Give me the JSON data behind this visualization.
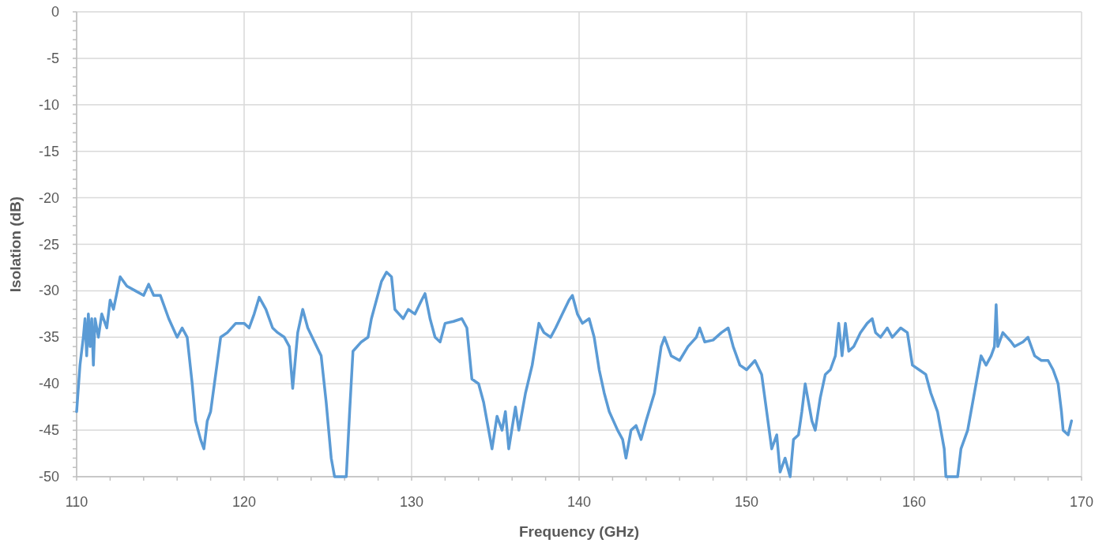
{
  "chart_data": {
    "type": "line",
    "xlabel": "Frequency (GHz)",
    "ylabel": "Isolation (dB)",
    "xlim": [
      110,
      170
    ],
    "ylim": [
      -50,
      0
    ],
    "xticks": [
      110,
      {
        "value": 112,
        "label": null
      },
      {
        "value": 114,
        "label": null
      },
      {
        "value": 116,
        "label": null
      },
      {
        "value": 118,
        "label": null
      },
      120,
      {
        "value": 122,
        "label": null
      },
      {
        "value": 124,
        "label": null
      },
      {
        "value": 126,
        "label": null
      },
      {
        "value": 128,
        "label": null
      },
      130,
      {
        "value": 132,
        "label": null
      },
      {
        "value": 134,
        "label": null
      },
      {
        "value": 136,
        "label": null
      },
      {
        "value": 138,
        "label": null
      },
      140,
      {
        "value": 142,
        "label": null
      },
      {
        "value": 144,
        "label": null
      },
      {
        "value": 146,
        "label": null
      },
      {
        "value": 148,
        "label": null
      },
      150,
      {
        "value": 152,
        "label": null
      },
      {
        "value": 154,
        "label": null
      },
      {
        "value": 156,
        "label": null
      },
      {
        "value": 158,
        "label": null
      },
      160,
      {
        "value": 162,
        "label": null
      },
      {
        "value": 164,
        "label": null
      },
      {
        "value": 166,
        "label": null
      },
      {
        "value": 168,
        "label": null
      },
      170
    ],
    "yticks": [
      -50,
      {
        "value": -49,
        "label": null
      },
      {
        "value": -48,
        "label": null
      },
      {
        "value": -47,
        "label": null
      },
      {
        "value": -46,
        "label": null
      },
      -45,
      {
        "value": -44,
        "label": null
      },
      {
        "value": -43,
        "label": null
      },
      {
        "value": -42,
        "label": null
      },
      {
        "value": -41,
        "label": null
      },
      -40,
      {
        "value": -39,
        "label": null
      },
      {
        "value": -38,
        "label": null
      },
      {
        "value": -37,
        "label": null
      },
      {
        "value": -36,
        "label": null
      },
      -35,
      {
        "value": -34,
        "label": null
      },
      {
        "value": -33,
        "label": null
      },
      {
        "value": -32,
        "label": null
      },
      {
        "value": -31,
        "label": null
      },
      -30,
      {
        "value": -29,
        "label": null
      },
      {
        "value": -28,
        "label": null
      },
      {
        "value": -27,
        "label": null
      },
      {
        "value": -26,
        "label": null
      },
      -25,
      {
        "value": -24,
        "label": null
      },
      {
        "value": -23,
        "label": null
      },
      {
        "value": -22,
        "label": null
      },
      {
        "value": -21,
        "label": null
      },
      -20,
      {
        "value": -19,
        "label": null
      },
      {
        "value": -18,
        "label": null
      },
      {
        "value": -17,
        "label": null
      },
      {
        "value": -16,
        "label": null
      },
      -15,
      {
        "value": -14,
        "label": null
      },
      {
        "value": -13,
        "label": null
      },
      {
        "value": -12,
        "label": null
      },
      {
        "value": -11,
        "label": null
      },
      -10,
      {
        "value": -9,
        "label": null
      },
      {
        "value": -8,
        "label": null
      },
      {
        "value": -7,
        "label": null
      },
      {
        "value": -6,
        "label": null
      },
      -5,
      {
        "value": -4,
        "label": null
      },
      {
        "value": -3,
        "label": null
      },
      {
        "value": -2,
        "label": null
      },
      {
        "value": -1,
        "label": null
      },
      0
    ],
    "grid": true,
    "marker": "none",
    "line_style": "solid",
    "series": [
      {
        "color": "#5b9bd5",
        "x": [
          110.0,
          110.2,
          110.4,
          110.5,
          110.6,
          110.7,
          110.8,
          110.9,
          111.0,
          111.1,
          111.3,
          111.5,
          111.8,
          112.0,
          112.2,
          112.6,
          113.0,
          113.5,
          114.0,
          114.3,
          114.6,
          115.0,
          115.5,
          116.0,
          116.3,
          116.6,
          116.9,
          117.1,
          117.4,
          117.6,
          117.8,
          118.0,
          118.3,
          118.6,
          119.0,
          119.5,
          120.0,
          120.3,
          120.6,
          120.9,
          121.3,
          121.7,
          122.0,
          122.4,
          122.7,
          122.9,
          123.2,
          123.5,
          123.8,
          124.2,
          124.6,
          124.9,
          125.2,
          125.4,
          126.1,
          126.3,
          126.5,
          127.0,
          127.4,
          127.6,
          127.9,
          128.2,
          128.5,
          128.8,
          129.0,
          129.5,
          129.8,
          130.2,
          130.6,
          130.8,
          131.1,
          131.4,
          131.7,
          132.0,
          132.5,
          133.0,
          133.3,
          133.6,
          134.0,
          134.3,
          134.5,
          134.8,
          135.1,
          135.4,
          135.6,
          135.8,
          136.2,
          136.4,
          136.8,
          137.2,
          137.6,
          137.9,
          138.3,
          138.6,
          139.0,
          139.4,
          139.6,
          139.9,
          140.2,
          140.6,
          140.9,
          141.2,
          141.5,
          141.8,
          142.3,
          142.6,
          142.8,
          143.1,
          143.4,
          143.7,
          144.0,
          144.5,
          144.9,
          145.1,
          145.5,
          146.0,
          146.5,
          147.0,
          147.2,
          147.5,
          148.0,
          148.5,
          148.9,
          149.2,
          149.6,
          150.0,
          150.5,
          150.9,
          151.2,
          151.5,
          151.8,
          152.0,
          152.3,
          152.6,
          152.8,
          153.1,
          153.3,
          153.5,
          153.9,
          154.1,
          154.4,
          154.7,
          155.0,
          155.3,
          155.5,
          155.7,
          155.9,
          156.1,
          156.4,
          156.8,
          157.2,
          157.5,
          157.7,
          158.0,
          158.4,
          158.7,
          159.2,
          159.6,
          159.9,
          160.3,
          160.7,
          161.0,
          161.4,
          161.8,
          161.9,
          162.6,
          162.8,
          163.2,
          163.5,
          163.8,
          164.0,
          164.3,
          164.6,
          164.8,
          164.9,
          165.0,
          165.3,
          165.8,
          166.0,
          166.5,
          166.8,
          167.2,
          167.6,
          168.0,
          168.3,
          168.6,
          168.8,
          168.9,
          169.2,
          169.4
        ],
        "values": [
          -43,
          -38,
          -35,
          -33,
          -37,
          -32.5,
          -36,
          -33,
          -38,
          -33,
          -35,
          -32.5,
          -34,
          -31,
          -32,
          -28.5,
          -29.5,
          -30,
          -30.5,
          -29.3,
          -30.5,
          -30.5,
          -33,
          -35,
          -34,
          -35,
          -40,
          -44,
          -46,
          -47,
          -44,
          -43,
          -39,
          -35,
          -34.5,
          -33.5,
          -33.5,
          -34,
          -32.5,
          -30.7,
          -32,
          -34,
          -34.5,
          -35,
          -36,
          -40.5,
          -34.5,
          -32,
          -34,
          -35.5,
          -37,
          -42,
          -48,
          -50,
          -50,
          -43,
          -36.5,
          -35.5,
          -35,
          -33,
          -31,
          -29,
          -28,
          -28.5,
          -32,
          -33,
          -32,
          -32.5,
          -31,
          -30.3,
          -33,
          -35,
          -35.5,
          -33.5,
          -33.3,
          -33,
          -34,
          -39.5,
          -40,
          -42,
          -44,
          -47,
          -43.5,
          -45,
          -43,
          -47,
          -42.5,
          -45,
          -41,
          -38,
          -33.5,
          -34.5,
          -35,
          -34,
          -32.5,
          -31,
          -30.5,
          -32.5,
          -33.5,
          -33,
          -35,
          -38.5,
          -41,
          -43,
          -45,
          -46,
          -48,
          -45,
          -44.5,
          -46,
          -44,
          -41,
          -36,
          -35,
          -37,
          -37.5,
          -36,
          -35,
          -34,
          -35.5,
          -35.3,
          -34.5,
          -34,
          -36,
          -38,
          -38.5,
          -37.5,
          -39,
          -43,
          -47,
          -45.5,
          -49.5,
          -48,
          -50,
          -46,
          -45.5,
          -43,
          -40,
          -44,
          -45,
          -41.5,
          -39,
          -38.5,
          -37,
          -33.5,
          -37,
          -33.5,
          -36.5,
          -36,
          -34.5,
          -33.5,
          -33,
          -34.5,
          -35,
          -34,
          -35,
          -34,
          -34.5,
          -38,
          -38.5,
          -39,
          -41,
          -43,
          -47,
          -50,
          -50,
          -47,
          -45,
          -42,
          -39,
          -37,
          -38,
          -37,
          -36,
          -31.5,
          -36,
          -34.5,
          -35.5,
          -36,
          -35.5,
          -35,
          -37,
          -37.5,
          -37.5,
          -38.5,
          -40,
          -43,
          -45,
          -45.5,
          -44
        ]
      }
    ]
  }
}
